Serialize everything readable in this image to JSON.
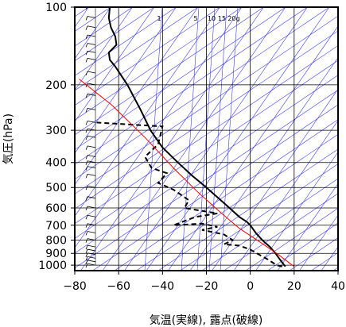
{
  "chart_data": {
    "type": "line",
    "title": "",
    "xlabel": "気温(実線), 露点(破線)",
    "ylabel": "気圧(hPa)",
    "xlim": [
      -80,
      40
    ],
    "ylim": [
      1050,
      100
    ],
    "y_scale": "log",
    "x_ticks": [
      -80,
      -60,
      -40,
      -20,
      0,
      20,
      40
    ],
    "x_tick_labels": [
      "−80",
      "−60",
      "−40",
      "−20",
      "0",
      "20",
      "40"
    ],
    "y_ticks": [
      1000,
      900,
      800,
      700,
      600,
      500,
      400,
      300,
      200,
      100
    ],
    "y_tick_labels": [
      "1000",
      "900",
      "800",
      "700",
      "600",
      "500",
      "400",
      "300",
      "200",
      "100"
    ],
    "mixing_ratio_labels": [
      "1",
      "5",
      "10",
      "15",
      "20g"
    ],
    "grid": true,
    "series": [
      {
        "style": "solid",
        "color": "#000000",
        "x": [
          16.0,
          15.5,
          13.5,
          11.5,
          9.0,
          5.5,
          2.5,
          0.0,
          -1.5,
          -5.0,
          -9.5,
          -14.5,
          -20.0,
          -26.5,
          -33.0,
          -40.0,
          -45.5,
          -50.0,
          -56.0,
          -61.5,
          -64.0,
          -64.5,
          -61.0,
          -61.5,
          -63.5,
          -64.5,
          -64.0
        ],
        "y": [
          1012,
          1000,
          950,
          900,
          850,
          800,
          750,
          700,
          680,
          650,
          600,
          550,
          500,
          450,
          400,
          350,
          300,
          250,
          200,
          170,
          160,
          150,
          140,
          130,
          120,
          110,
          100
        ]
      },
      {
        "style": "dashed",
        "color": "#000000",
        "x": [
          14.5,
          12.0,
          8.0,
          3.0,
          0.0,
          -5.0,
          -12.0,
          -8.0,
          -12.0,
          -22.0,
          -15.0,
          -22.0,
          -35.0,
          -25.0,
          -15.0,
          -30.0,
          -28.0,
          -35.0,
          -42.0,
          -38.0,
          -45.0,
          -48.0,
          -42.0,
          -40.0,
          -70.0
        ],
        "y": [
          1012,
          1000,
          950,
          900,
          870,
          840,
          830,
          800,
          760,
          730,
          710,
          690,
          700,
          650,
          630,
          600,
          560,
          510,
          480,
          440,
          420,
          380,
          340,
          290,
          280
        ]
      },
      {
        "style": "solid",
        "color": "#ff0000",
        "x": [
          20.0,
          12.0,
          5.0,
          -5.0,
          -14.0,
          -24.0,
          -35.0,
          -48.0,
          -63.0,
          -78.0
        ],
        "y": [
          1012,
          900,
          820,
          720,
          620,
          520,
          420,
          320,
          240,
          190
        ]
      }
    ]
  }
}
